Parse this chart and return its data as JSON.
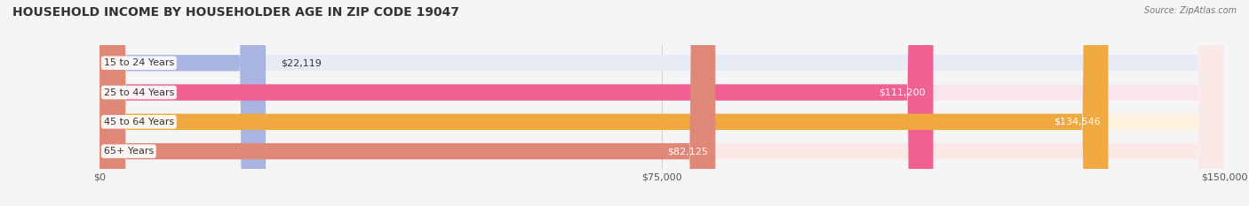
{
  "title": "HOUSEHOLD INCOME BY HOUSEHOLDER AGE IN ZIP CODE 19047",
  "source": "Source: ZipAtlas.com",
  "categories": [
    "15 to 24 Years",
    "25 to 44 Years",
    "45 to 64 Years",
    "65+ Years"
  ],
  "values": [
    22119,
    111200,
    134546,
    82125
  ],
  "value_labels": [
    "$22,119",
    "$111,200",
    "$134,546",
    "$82,125"
  ],
  "bar_colors": [
    "#aab4e0",
    "#f06090",
    "#f0a840",
    "#e08878"
  ],
  "bar_bg_colors": [
    "#e8eaf6",
    "#fce4ec",
    "#fff3e0",
    "#fbe9e7"
  ],
  "xlim": [
    0,
    150000
  ],
  "xticks": [
    0,
    75000,
    150000
  ],
  "xtick_labels": [
    "$0",
    "$75,000",
    "$150,000"
  ],
  "title_fontsize": 10,
  "source_fontsize": 7,
  "label_fontsize": 8,
  "value_fontsize": 8,
  "bar_height": 0.55,
  "background_color": "#f5f5f5"
}
